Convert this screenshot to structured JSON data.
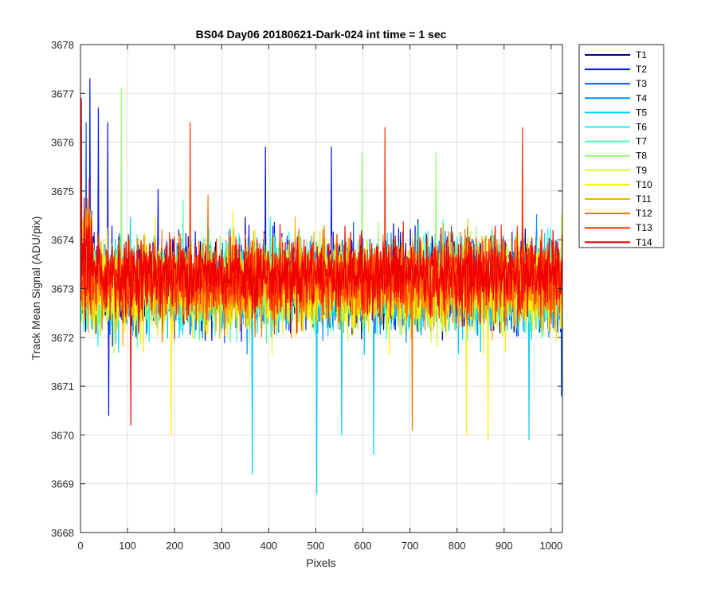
{
  "chart_data": {
    "type": "line",
    "title": "BS04 Day06 20180621-Dark-024 int time = 1 sec",
    "xlabel": "Pixels",
    "ylabel": "Track Mean Signal (ADU/pix)",
    "xlim": [
      0,
      1024
    ],
    "ylim": [
      3668,
      3678
    ],
    "x_ticks": [
      "0",
      "100",
      "200",
      "300",
      "400",
      "500",
      "600",
      "700",
      "800",
      "900",
      "1000"
    ],
    "y_ticks": [
      "3668",
      "3669",
      "3670",
      "3671",
      "3672",
      "3673",
      "3674",
      "3675",
      "3676",
      "3677",
      "3678"
    ],
    "grid": true,
    "legend_position": "outside-top-right",
    "x_range": [
      1,
      1024
    ],
    "series": [
      {
        "name": "T1",
        "color": "#00008F",
        "mean": 3673.1,
        "spread": 0.75
      },
      {
        "name": "T2",
        "color": "#0010FF",
        "mean": 3673.15,
        "spread": 0.8,
        "peaks": [
          {
            "x": 20,
            "y": 3677.3
          },
          {
            "x": 38,
            "y": 3676.7
          },
          {
            "x": 58,
            "y": 3676.4
          },
          {
            "x": 393,
            "y": 3675.9
          },
          {
            "x": 533,
            "y": 3675.9
          }
        ],
        "dips": [
          {
            "x": 60,
            "y": 3670.4
          }
        ]
      },
      {
        "name": "T3",
        "color": "#0050FF",
        "mean": 3673.1,
        "spread": 0.75,
        "peaks": [
          {
            "x": 12,
            "y": 3676.4
          }
        ],
        "dips": [
          {
            "x": 1022,
            "y": 3670.8
          }
        ]
      },
      {
        "name": "T4",
        "color": "#0090FF",
        "mean": 3673.05,
        "spread": 0.75
      },
      {
        "name": "T5",
        "color": "#00D0FF",
        "mean": 3673.0,
        "spread": 0.8,
        "dips": [
          {
            "x": 365,
            "y": 3669.2
          },
          {
            "x": 502,
            "y": 3668.8
          },
          {
            "x": 623,
            "y": 3669.6
          },
          {
            "x": 953,
            "y": 3669.9
          },
          {
            "x": 555,
            "y": 3670.0
          }
        ]
      },
      {
        "name": "T6",
        "color": "#10FFEF",
        "mean": 3673.1,
        "spread": 0.75
      },
      {
        "name": "T7",
        "color": "#50FFAF",
        "mean": 3673.05,
        "spread": 0.75
      },
      {
        "name": "T8",
        "color": "#90FF6F",
        "mean": 3673.1,
        "spread": 0.75,
        "peaks": [
          {
            "x": 87,
            "y": 3677.1
          },
          {
            "x": 598,
            "y": 3675.8
          },
          {
            "x": 755,
            "y": 3675.8
          }
        ]
      },
      {
        "name": "T9",
        "color": "#CFFF30",
        "mean": 3673.05,
        "spread": 0.75
      },
      {
        "name": "T10",
        "color": "#FFEF00",
        "mean": 3673.0,
        "spread": 0.8,
        "dips": [
          {
            "x": 193,
            "y": 3670.0
          },
          {
            "x": 820,
            "y": 3670.0
          },
          {
            "x": 866,
            "y": 3669.9
          }
        ]
      },
      {
        "name": "T11",
        "color": "#FFAF00",
        "mean": 3673.1,
        "spread": 0.75
      },
      {
        "name": "T12",
        "color": "#FF7000",
        "mean": 3673.15,
        "spread": 0.75,
        "dips": [
          {
            "x": 705,
            "y": 3670.1
          }
        ]
      },
      {
        "name": "T13",
        "color": "#FF3000",
        "mean": 3673.2,
        "spread": 0.7,
        "peaks": [
          {
            "x": 233,
            "y": 3676.4
          },
          {
            "x": 647,
            "y": 3676.3
          },
          {
            "x": 939,
            "y": 3676.3
          }
        ]
      },
      {
        "name": "T14",
        "color": "#EF0000",
        "mean": 3673.3,
        "spread": 0.65,
        "peaks": [
          {
            "x": 2,
            "y": 3676.9
          }
        ],
        "dips": [
          {
            "x": 107,
            "y": 3670.2
          }
        ]
      }
    ]
  }
}
